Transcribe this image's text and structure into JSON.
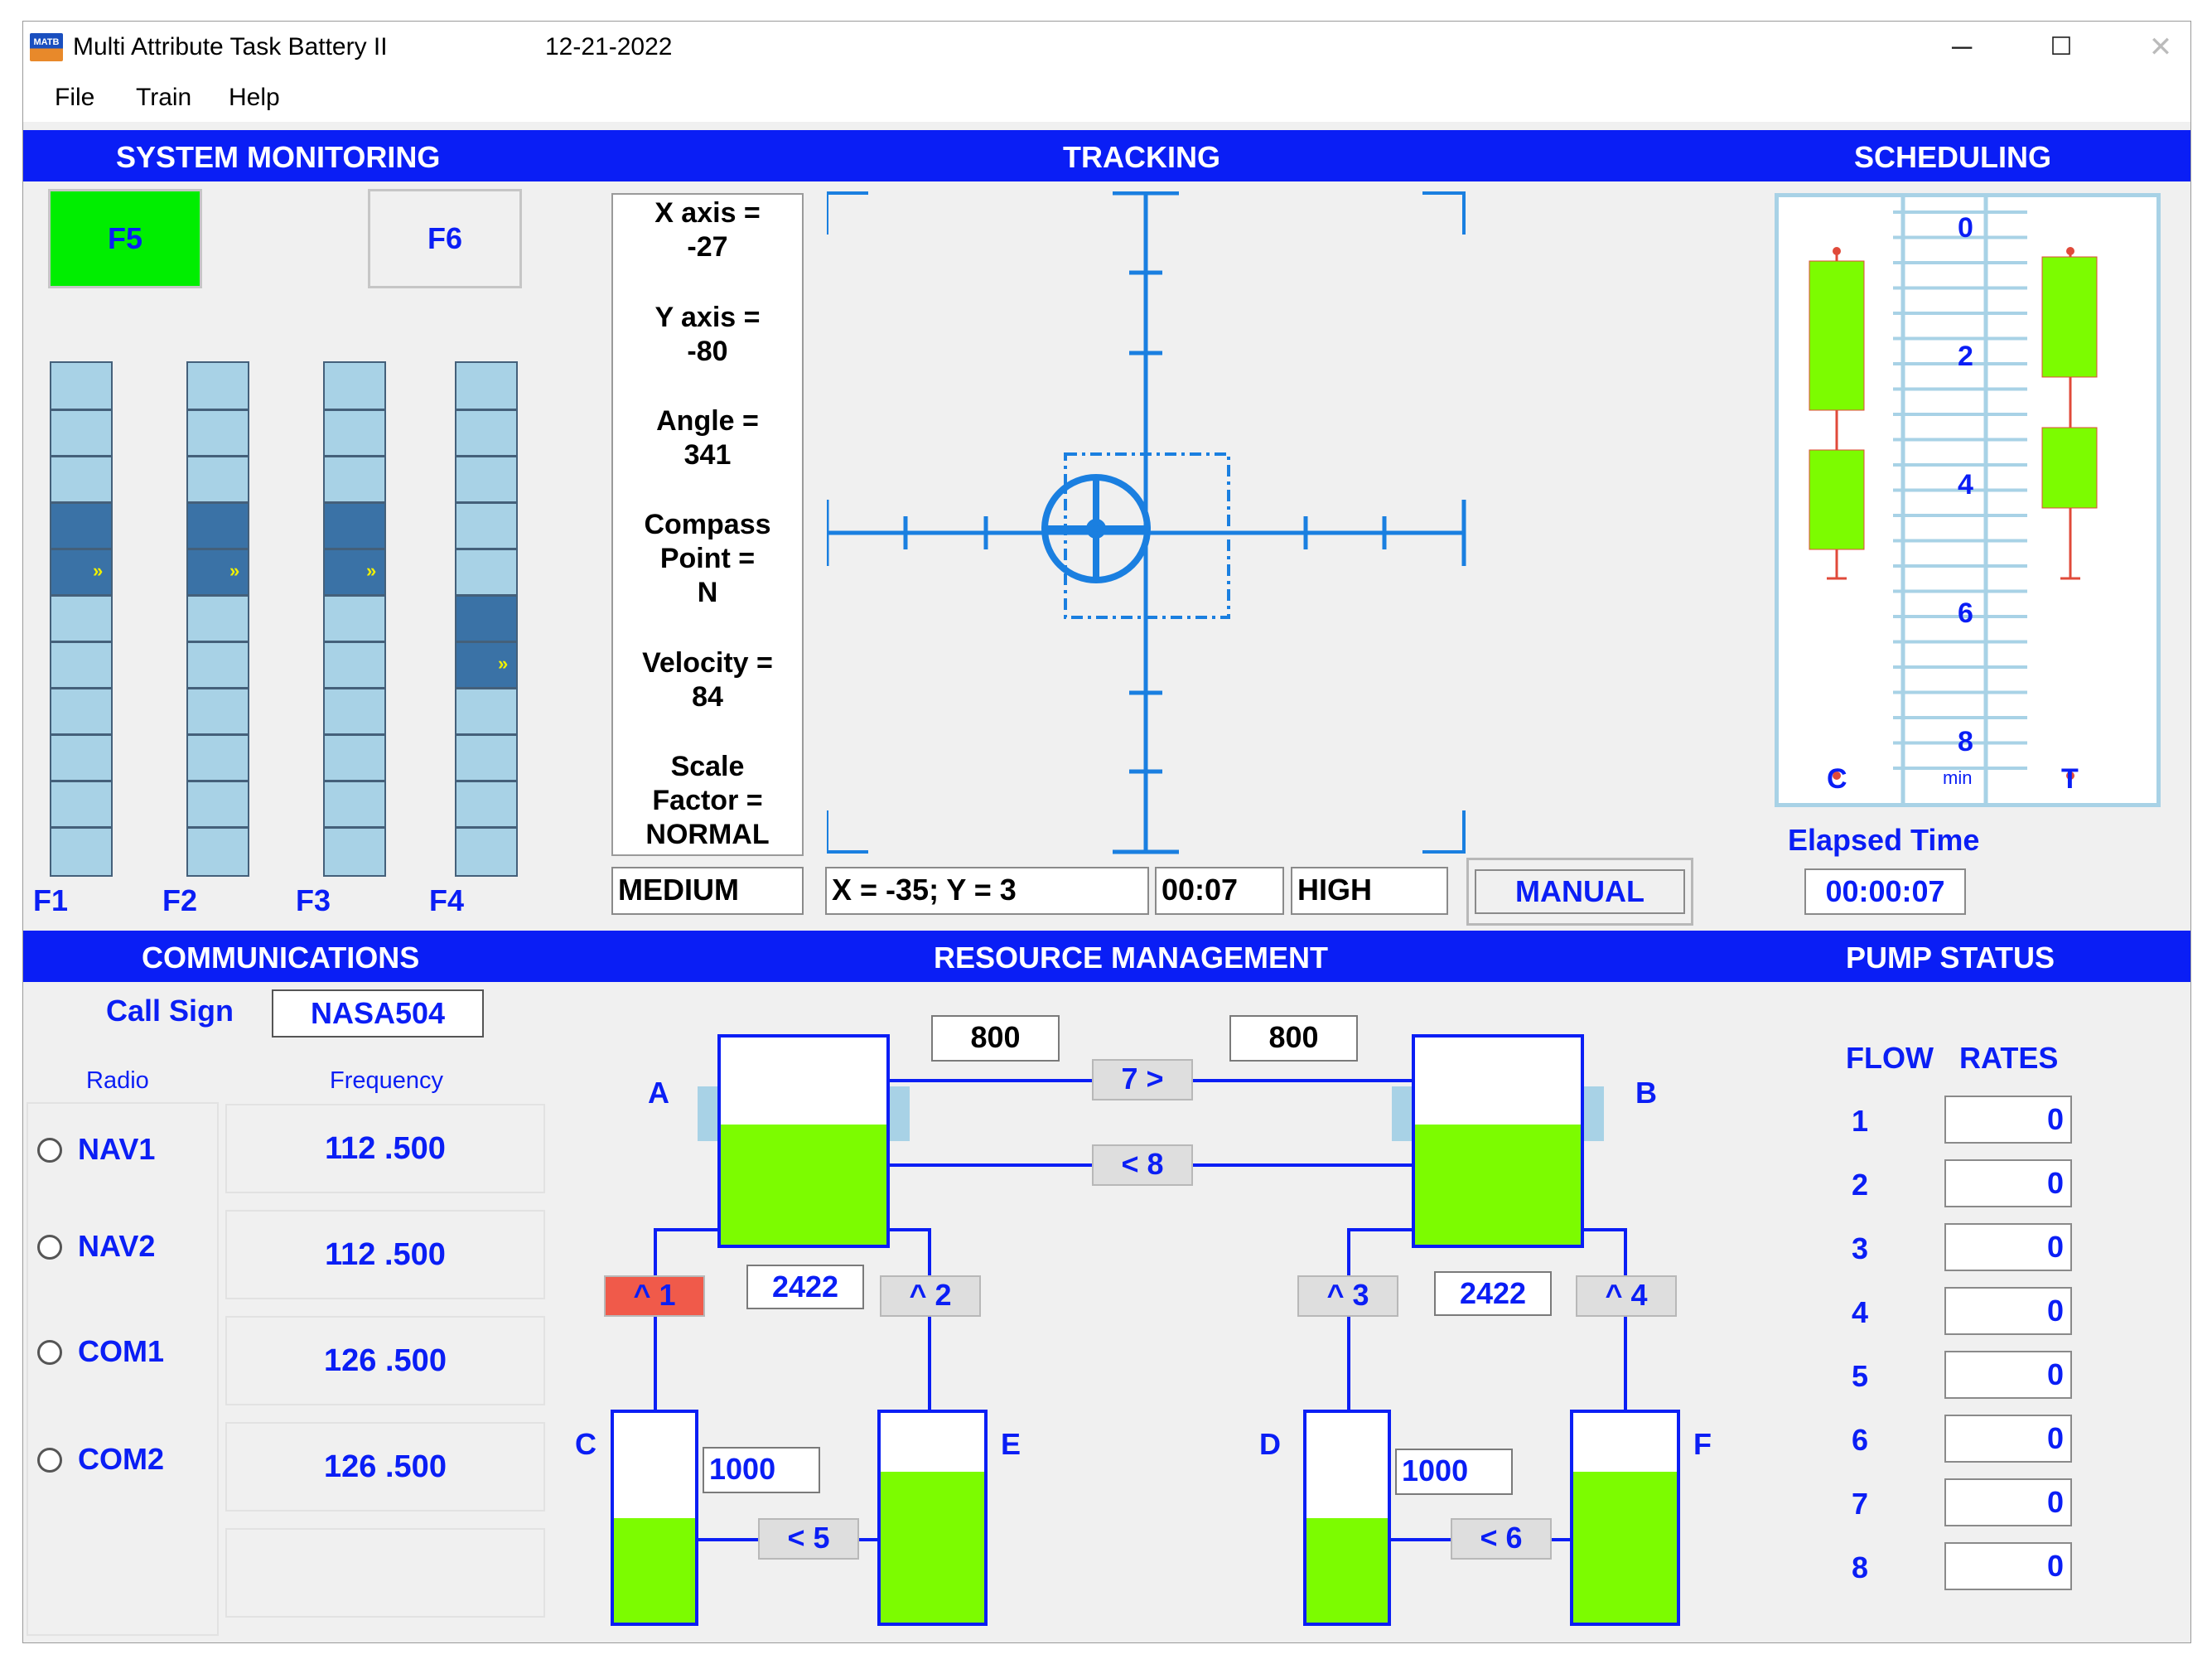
{
  "window": {
    "title": "Multi Attribute Task  Battery II",
    "date": "12-21-2022",
    "icon_label": "MATB",
    "controls": {
      "minimize": "─",
      "maximize": "☐",
      "close": "✕"
    }
  },
  "menu": [
    "File",
    "Train",
    "Help"
  ],
  "headers": {
    "system_monitoring": "SYSTEM MONITORING",
    "tracking": "TRACKING",
    "scheduling": "SCHEDULING",
    "communications": "COMMUNICATIONS",
    "resource_management": "RESOURCE MANAGEMENT",
    "pump_status": "PUMP STATUS"
  },
  "system_monitoring": {
    "f5": {
      "label": "F5",
      "color": "#00ee00"
    },
    "f6": {
      "label": "F6"
    },
    "gauges": [
      {
        "label": "F1",
        "window_segments": [
          3,
          5
        ],
        "arrow_segment": 4
      },
      {
        "label": "F2",
        "window_segments": [
          3,
          5
        ],
        "arrow_segment": 4
      },
      {
        "label": "F3",
        "window_segments": [
          3,
          5
        ],
        "arrow_segment": 4
      },
      {
        "label": "F4",
        "window_segments": [
          5,
          7
        ],
        "arrow_segment": 6
      }
    ]
  },
  "tracking": {
    "info": {
      "x_label": "X axis =",
      "x_value": "-27",
      "y_label": "Y axis =",
      "y_value": "-80",
      "angle_label": "Angle =",
      "angle_value": "341",
      "compass_label": "Compass",
      "compass_label2": "Point =",
      "compass_value": "N",
      "velocity_label": "Velocity =",
      "velocity_value": "84",
      "scale_label": "Scale",
      "scale_label2": "Factor =",
      "scale_value": "NORMAL"
    },
    "status": {
      "difficulty": "MEDIUM",
      "coords": "X = -35;    Y = 3",
      "timer": "00:07",
      "level": "HIGH",
      "mode": "MANUAL"
    }
  },
  "scheduling": {
    "ticks": [
      "0",
      "2",
      "4",
      "6",
      "8"
    ],
    "unit": "min",
    "left_label": "C",
    "right_label": "T",
    "elapsed_label": "Elapsed Time",
    "elapsed_value": "00:00:07"
  },
  "communications": {
    "call_sign_label": "Call Sign",
    "call_sign_value": "NASA504",
    "radio_header": "Radio",
    "frequency_header": "Frequency",
    "channels": [
      {
        "name": "NAV1",
        "frequency": "112 .500"
      },
      {
        "name": "NAV2",
        "frequency": "112 .500"
      },
      {
        "name": "COM1",
        "frequency": "126 .500"
      },
      {
        "name": "COM2",
        "frequency": "126 .500"
      }
    ]
  },
  "resource_management": {
    "tanks": {
      "A": {
        "label": "A",
        "level": 0.58
      },
      "B": {
        "label": "B",
        "level": 0.58
      },
      "C": {
        "label": "C",
        "level": 0.5
      },
      "D": {
        "label": "D",
        "level": 0.5
      },
      "E": {
        "label": "E",
        "level": 0.72
      },
      "F": {
        "label": "F",
        "level": 0.72
      }
    },
    "values": {
      "a_top": "800",
      "b_top": "800",
      "a_mid": "2422",
      "b_mid": "2422",
      "c_val": "1000",
      "d_val": "1000"
    },
    "pumps": [
      {
        "id": "p1",
        "label": "^ 1",
        "active": true
      },
      {
        "id": "p2",
        "label": "^ 2",
        "active": false
      },
      {
        "id": "p3",
        "label": "^ 3",
        "active": false
      },
      {
        "id": "p4",
        "label": "^ 4",
        "active": false
      },
      {
        "id": "p5",
        "label": "< 5",
        "active": false
      },
      {
        "id": "p6",
        "label": "< 6",
        "active": false
      },
      {
        "id": "p7",
        "label": "7 >",
        "active": false
      },
      {
        "id": "p8",
        "label": "< 8",
        "active": false
      }
    ],
    "active_color": "#f05a4a"
  },
  "pump_status": {
    "flow_label": "FLOW",
    "rates_label": "RATES",
    "rows": [
      {
        "pump": "1",
        "rate": "0"
      },
      {
        "pump": "2",
        "rate": "0"
      },
      {
        "pump": "3",
        "rate": "0"
      },
      {
        "pump": "4",
        "rate": "0"
      },
      {
        "pump": "5",
        "rate": "0"
      },
      {
        "pump": "6",
        "rate": "0"
      },
      {
        "pump": "7",
        "rate": "0"
      },
      {
        "pump": "8",
        "rate": "0"
      }
    ]
  }
}
